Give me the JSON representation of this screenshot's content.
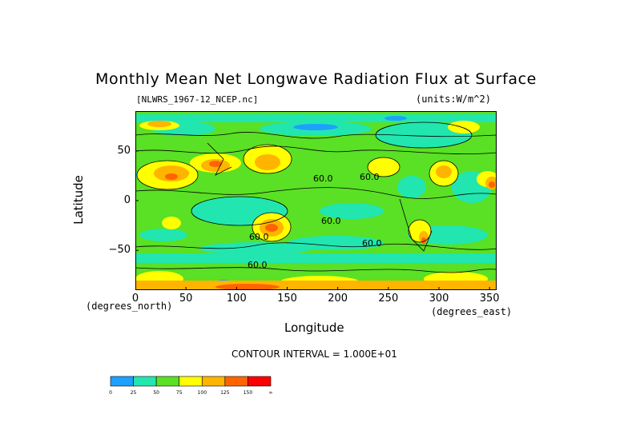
{
  "chart_data": {
    "type": "heatmap",
    "title": "Monthly Mean Net Longwave Radiation Flux at Surface",
    "source_label": "[NLWRS_1967-12_NCEP.nc]",
    "units_label": "(units:W/m^2)",
    "xlabel": "Longitude",
    "ylabel": "Latitude",
    "x_unit_label": "(degrees_east)",
    "y_unit_label": "(degrees_north)",
    "xlim": [
      0,
      357
    ],
    "ylim": [
      -90,
      90
    ],
    "x_ticks": [
      "0",
      "50",
      "100",
      "150",
      "200",
      "250",
      "300",
      "350"
    ],
    "y_ticks": [
      "50",
      "0",
      "−50"
    ],
    "y_tick_values": [
      50,
      0,
      -50
    ],
    "x_tick_values": [
      0,
      50,
      100,
      150,
      200,
      250,
      300,
      350
    ],
    "contour_interval_text": "CONTOUR INTERVAL = 1.000E+01",
    "contour_labels": [
      "60.0",
      "60.0",
      "60.0",
      "60.0",
      "60.0",
      "60.0"
    ],
    "colorbar": {
      "levels": [
        "0",
        "25",
        "50",
        "75",
        "100",
        "125",
        "150",
        "∞"
      ],
      "colors": [
        "#1ea0ff",
        "#22e6b0",
        "#5ae024",
        "#ffff00",
        "#ffb400",
        "#ff6400",
        "#ff0000"
      ]
    },
    "grid": false
  }
}
